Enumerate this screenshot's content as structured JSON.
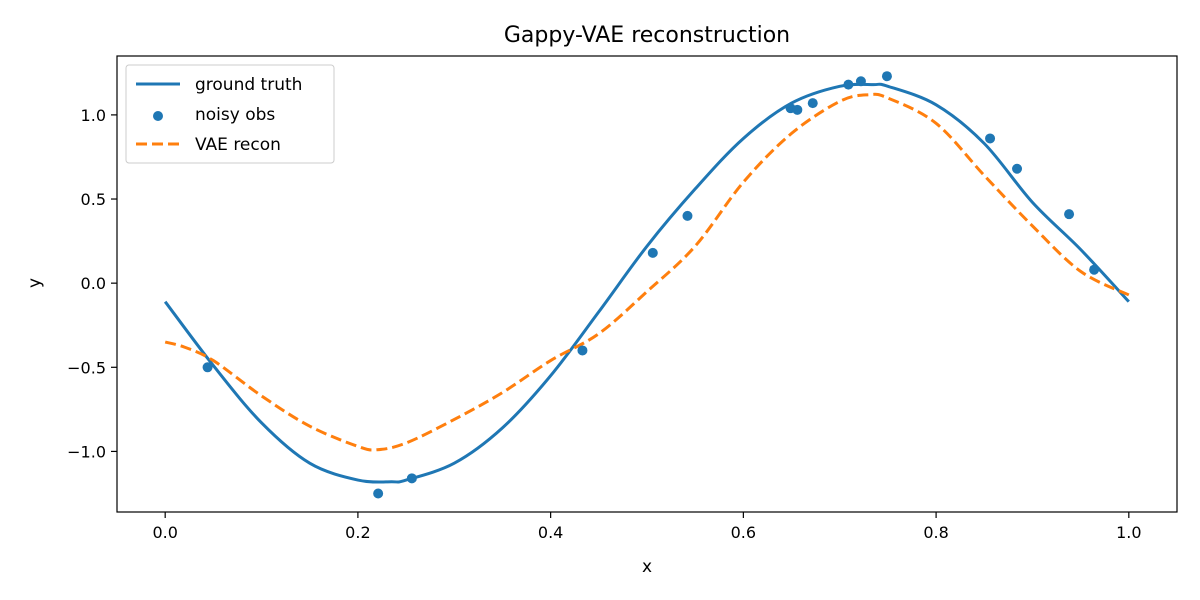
{
  "chart_data": {
    "type": "line",
    "title": "Gappy-VAE reconstruction",
    "xlabel": "x",
    "ylabel": "y",
    "xlim": [
      -0.05,
      1.05
    ],
    "ylim": [
      -1.36,
      1.35
    ],
    "xticks": [
      0.0,
      0.2,
      0.4,
      0.6,
      0.8,
      1.0
    ],
    "xtick_labels": [
      "0.0",
      "0.2",
      "0.4",
      "0.6",
      "0.8",
      "1.0"
    ],
    "yticks": [
      -1.0,
      -0.5,
      0.0,
      0.5,
      1.0
    ],
    "ytick_labels": [
      "−1.0",
      "−0.5",
      "0.0",
      "0.5",
      "1.0"
    ],
    "grid": false,
    "legend_position": "top-left",
    "series": [
      {
        "name": "ground truth",
        "kind": "line",
        "style": "solid",
        "color": "#1f77b4",
        "x": [
          0.0,
          0.05,
          0.1,
          0.15,
          0.2,
          0.235,
          0.25,
          0.3,
          0.35,
          0.4,
          0.45,
          0.5,
          0.55,
          0.6,
          0.65,
          0.7,
          0.735,
          0.75,
          0.8,
          0.85,
          0.9,
          0.95,
          1.0
        ],
        "y": [
          -0.11,
          -0.49,
          -0.83,
          -1.07,
          -1.17,
          -1.18,
          -1.17,
          -1.07,
          -0.86,
          -0.55,
          -0.17,
          0.22,
          0.56,
          0.86,
          1.07,
          1.17,
          1.18,
          1.17,
          1.06,
          0.83,
          0.48,
          0.2,
          -0.11
        ]
      },
      {
        "name": "noisy obs",
        "kind": "scatter",
        "color": "#1f77b4",
        "x": [
          0.044,
          0.221,
          0.256,
          0.433,
          0.506,
          0.542,
          0.649,
          0.656,
          0.672,
          0.709,
          0.722,
          0.749,
          0.856,
          0.884,
          0.938,
          0.964
        ],
        "y": [
          -0.5,
          -1.25,
          -1.16,
          -0.4,
          0.18,
          0.4,
          1.04,
          1.03,
          1.07,
          1.18,
          1.2,
          1.23,
          0.86,
          0.68,
          0.41,
          0.08
        ]
      },
      {
        "name": "VAE recon",
        "kind": "line",
        "style": "dashed",
        "color": "#ff7f0e",
        "x": [
          0.0,
          0.02,
          0.05,
          0.1,
          0.15,
          0.2,
          0.22,
          0.25,
          0.3,
          0.35,
          0.4,
          0.45,
          0.5,
          0.55,
          0.6,
          0.65,
          0.7,
          0.73,
          0.75,
          0.8,
          0.85,
          0.9,
          0.95,
          1.0
        ],
        "y": [
          -0.35,
          -0.38,
          -0.46,
          -0.67,
          -0.85,
          -0.97,
          -0.99,
          -0.95,
          -0.81,
          -0.65,
          -0.46,
          -0.3,
          -0.05,
          0.22,
          0.6,
          0.89,
          1.08,
          1.12,
          1.1,
          0.95,
          0.64,
          0.34,
          0.07,
          -0.07
        ]
      }
    ]
  }
}
